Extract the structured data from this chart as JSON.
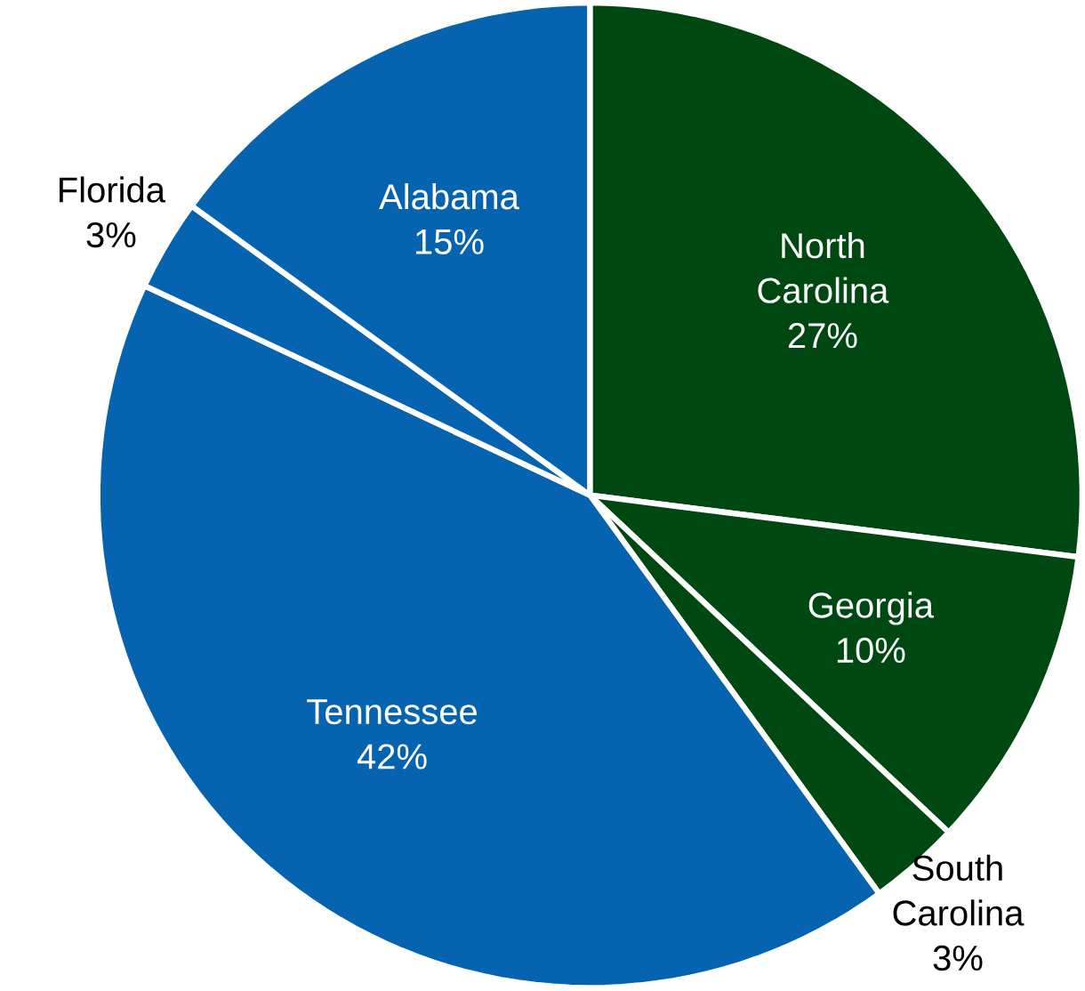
{
  "chart_data": {
    "type": "pie",
    "categories": [
      "North Carolina",
      "Georgia",
      "South Carolina",
      "Tennessee",
      "Florida",
      "Alabama"
    ],
    "values": [
      27,
      10,
      3,
      42,
      3,
      15
    ],
    "value_labels": [
      "27%",
      "10%",
      "3%",
      "42%",
      "3%",
      "15%"
    ],
    "colors": [
      "#004812",
      "#004812",
      "#004812",
      "#0563b0",
      "#0563b0",
      "#0563b0"
    ]
  }
}
